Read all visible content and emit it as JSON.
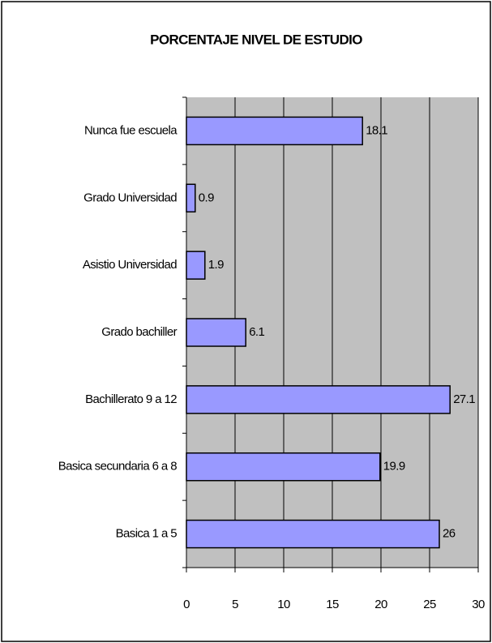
{
  "chart_data": {
    "type": "bar",
    "orientation": "horizontal",
    "title": "PORCENTAJE NIVEL DE ESTUDIO",
    "categories": [
      "Nunca fue escuela",
      "Grado Universidad",
      "Asistio Universidad",
      "Grado bachiller",
      "Bachillerato 9 a 12",
      "Basica secundaria  6 a 8",
      "Basica 1 a 5"
    ],
    "values": [
      18.1,
      0.9,
      1.9,
      6.1,
      27.1,
      19.9,
      26
    ],
    "color": "#9999ff",
    "plot_background": "#c0c0c0",
    "xlim": [
      0,
      30
    ],
    "xticks": [
      0,
      5,
      10,
      15,
      20,
      25,
      30
    ],
    "grid": true
  }
}
